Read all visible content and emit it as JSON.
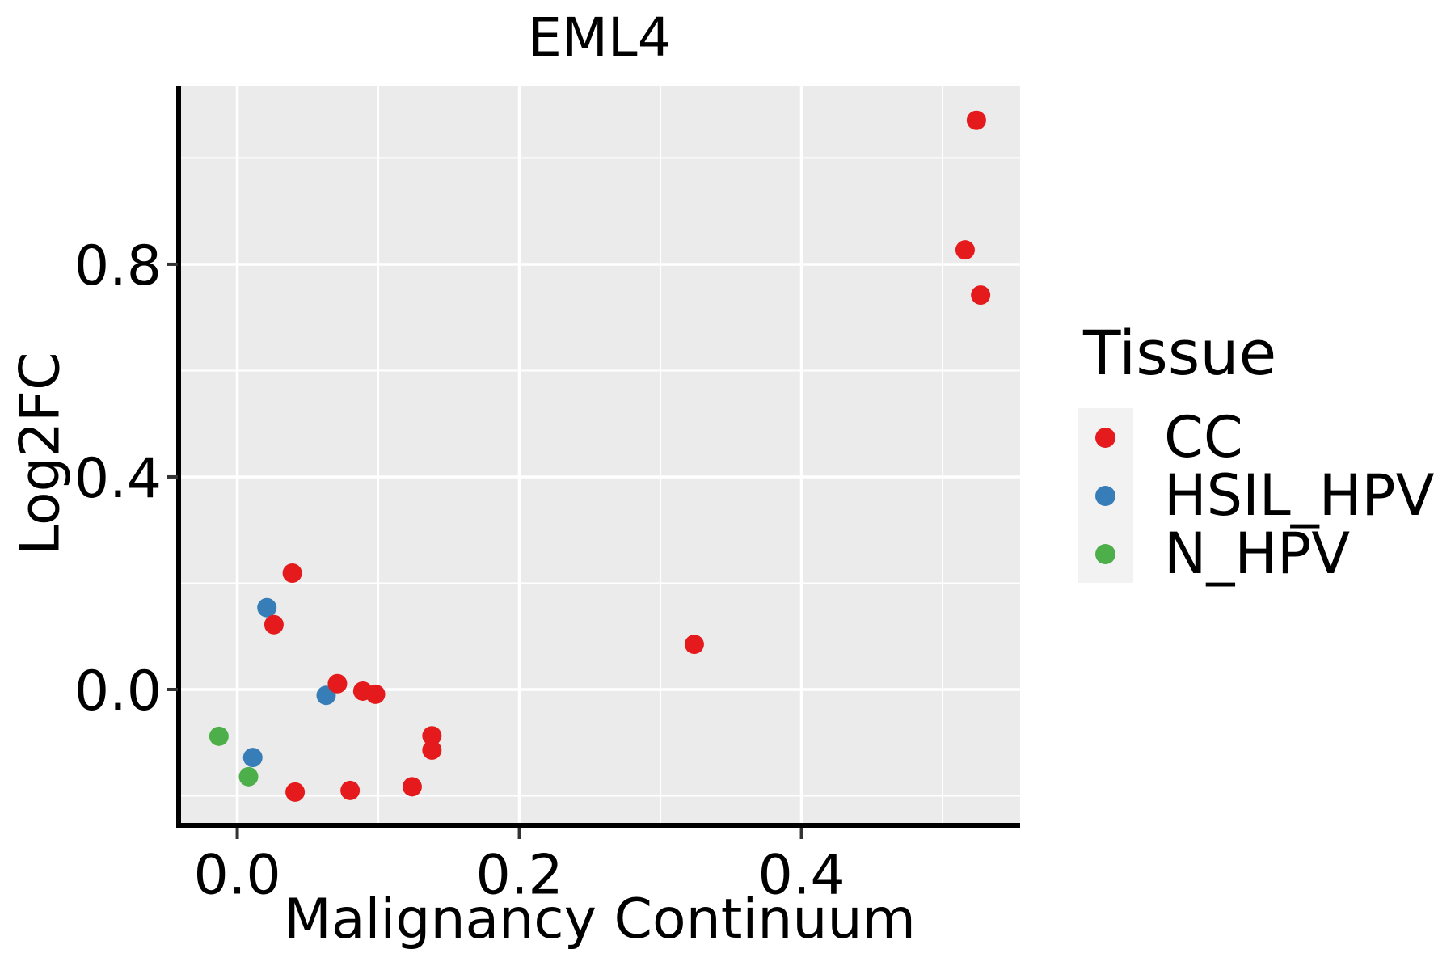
{
  "title": "EML4",
  "axes": {
    "x": {
      "label": "Malignancy Continuum",
      "tick_values": [
        0.0,
        0.2,
        0.4
      ],
      "tick_labels": [
        "0.0",
        "0.2",
        "0.4"
      ],
      "minor_tick_values": [
        0.1,
        0.3,
        0.5
      ]
    },
    "y": {
      "label": "Log2FC",
      "tick_values": [
        0.0,
        0.4,
        0.8
      ],
      "tick_labels": [
        "0.0",
        "0.4",
        "0.8"
      ],
      "minor_tick_values": [
        -0.2,
        0.2,
        0.6,
        1.0
      ]
    }
  },
  "legend": {
    "title": "Tissue",
    "items": [
      {
        "label": "CC",
        "color": "#e41a1c"
      },
      {
        "label": "HSIL_HPV",
        "color": "#377eb8"
      },
      {
        "label": "N_HPV",
        "color": "#4daf4a"
      }
    ]
  },
  "colors": {
    "panel_bg": "#ebebeb",
    "grid": "#ffffff",
    "axis_line": "#000000",
    "tick": "#333333",
    "text": "#000000",
    "legend_key_bg": "#f2f2f2"
  },
  "chart_data": {
    "type": "scatter",
    "title": "EML4",
    "xlabel": "Malignancy Continuum",
    "ylabel": "Log2FC",
    "xlim": [
      -0.041,
      0.555
    ],
    "ylim": [
      -0.254,
      1.136
    ],
    "grid": true,
    "legend_title": "Tissue",
    "legend_position": "right",
    "point_radius_px": 12,
    "series": [
      {
        "name": "CC",
        "color": "#e41a1c",
        "draw_order": 3,
        "points": [
          [
            0.524,
            1.071
          ],
          [
            0.516,
            0.827
          ],
          [
            0.527,
            0.742
          ],
          [
            0.324,
            0.085
          ],
          [
            0.039,
            0.219
          ],
          [
            0.026,
            0.122
          ],
          [
            0.071,
            0.011
          ],
          [
            0.089,
            -0.003
          ],
          [
            0.098,
            -0.009
          ],
          [
            0.041,
            -0.193
          ],
          [
            0.08,
            -0.19
          ],
          [
            0.124,
            -0.183
          ],
          [
            0.138,
            -0.087
          ],
          [
            0.138,
            -0.114
          ]
        ]
      },
      {
        "name": "HSIL_HPV",
        "color": "#377eb8",
        "draw_order": 1,
        "points": [
          [
            0.021,
            0.154
          ],
          [
            0.063,
            -0.011
          ],
          [
            0.011,
            -0.128
          ]
        ]
      },
      {
        "name": "N_HPV",
        "color": "#4daf4a",
        "draw_order": 2,
        "points": [
          [
            -0.013,
            -0.088
          ],
          [
            0.008,
            -0.164
          ]
        ]
      }
    ]
  }
}
